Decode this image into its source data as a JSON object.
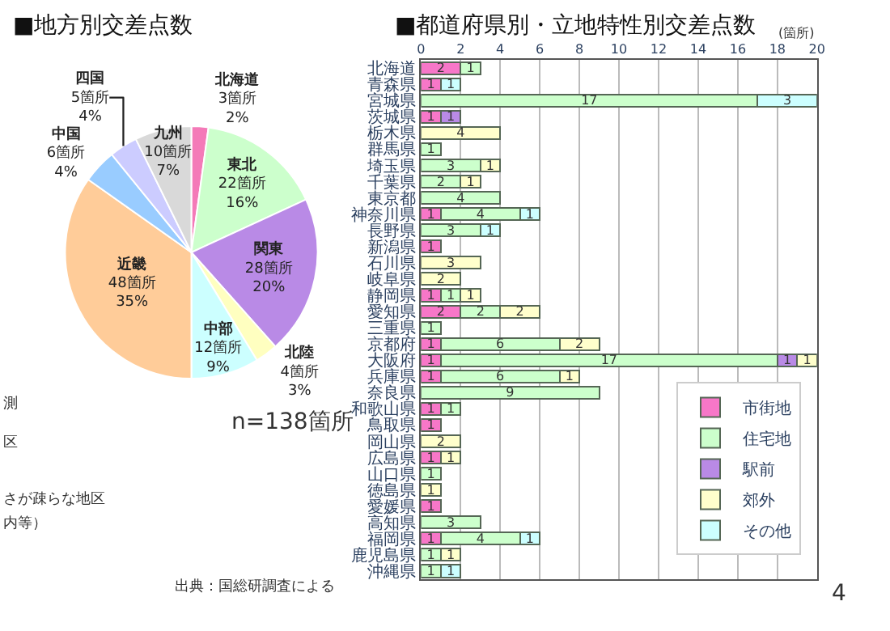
{
  "chart_data": [
    {
      "type": "pie",
      "title": "■地方別交差点数",
      "categories": [
        "北海道",
        "東北",
        "関東",
        "北陸",
        "中部",
        "近畿",
        "中国",
        "四国",
        "九州"
      ],
      "values": [
        3,
        22,
        28,
        4,
        12,
        48,
        6,
        5,
        10
      ],
      "value_labels": [
        "3箇所\n2%",
        "22箇所\n16%",
        "28箇所\n20%",
        "4箇所\n3%",
        "12箇所\n9%",
        "48箇所\n35%",
        "6箇所\n4%",
        "5箇所\n4%",
        "10箇所\n7%"
      ],
      "colors": [
        "#f47ab8",
        "#ccffcc",
        "#b98ae6",
        "#ffffc0",
        "#ccffff",
        "#ffcc99",
        "#99ccff",
        "#ccccff",
        "#d9d9d9"
      ],
      "legend": false,
      "annotations": [
        "n=138箇所",
        "出典：国総研調査による",
        "測",
        "区",
        "さが疎らな地区",
        "内等）"
      ]
    },
    {
      "type": "bar",
      "title": "■都道府県別・立地特性別交差点数",
      "orientation": "horizontal",
      "stacked": true,
      "xlabel": "(箇所)",
      "categories": [
        "北海道",
        "青森県",
        "宮城県",
        "茨城県",
        "栃木県",
        "群馬県",
        "埼玉県",
        "千葉県",
        "東京都",
        "神奈川県",
        "長野県",
        "新潟県",
        "石川県",
        "岐阜県",
        "静岡県",
        "愛知県",
        "三重県",
        "京都府",
        "大阪府",
        "兵庫県",
        "奈良県",
        "和歌山県",
        "鳥取県",
        "岡山県",
        "広島県",
        "山口県",
        "徳島県",
        "愛媛県",
        "高知県",
        "福岡県",
        "鹿児島県",
        "沖縄県"
      ],
      "series": [
        {
          "name": "市街地",
          "color": "#f777c8",
          "values": [
            2,
            1,
            null,
            1,
            null,
            null,
            null,
            null,
            null,
            1,
            null,
            1,
            null,
            null,
            1,
            2,
            null,
            1,
            1,
            1,
            null,
            1,
            1,
            null,
            1,
            null,
            null,
            1,
            null,
            1,
            null,
            null
          ]
        },
        {
          "name": "住宅地",
          "color": "#ccffcc",
          "values": [
            1,
            null,
            17,
            null,
            null,
            1,
            3,
            2,
            4,
            4,
            3,
            null,
            null,
            null,
            1,
            2,
            1,
            6,
            17,
            6,
            9,
            1,
            null,
            null,
            null,
            1,
            null,
            null,
            3,
            4,
            1,
            1
          ]
        },
        {
          "name": "駅前",
          "color": "#b98ae6",
          "values": [
            null,
            null,
            null,
            1,
            null,
            null,
            null,
            null,
            null,
            null,
            null,
            null,
            null,
            null,
            null,
            null,
            null,
            null,
            1,
            null,
            null,
            null,
            null,
            null,
            null,
            null,
            null,
            null,
            null,
            null,
            null,
            null
          ]
        },
        {
          "name": "郊外",
          "color": "#ffffcc",
          "values": [
            null,
            null,
            null,
            null,
            4,
            null,
            1,
            1,
            null,
            null,
            null,
            null,
            3,
            2,
            1,
            2,
            null,
            2,
            1,
            1,
            null,
            null,
            null,
            2,
            1,
            null,
            1,
            null,
            null,
            null,
            1,
            null
          ]
        },
        {
          "name": "その他",
          "color": "#ccffff",
          "values": [
            null,
            1,
            3,
            null,
            null,
            null,
            null,
            null,
            null,
            1,
            1,
            null,
            null,
            null,
            null,
            null,
            null,
            null,
            null,
            null,
            null,
            null,
            null,
            null,
            null,
            null,
            null,
            null,
            null,
            1,
            null,
            1
          ]
        }
      ],
      "xlim": [
        0,
        20
      ],
      "xticks": [
        0,
        2,
        4,
        6,
        8,
        10,
        12,
        14,
        16,
        18,
        20
      ],
      "grid": "x",
      "legend": "bottom right",
      "data_labels": true,
      "annotations": [
        "4"
      ]
    }
  ]
}
